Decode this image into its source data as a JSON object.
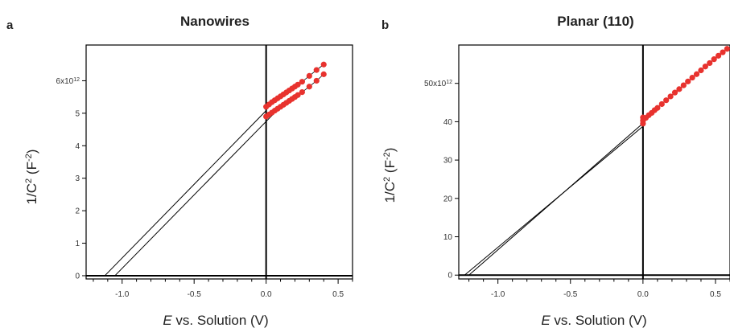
{
  "chart_data": [
    {
      "panel": "a",
      "type": "scatter",
      "title": "Nanowires",
      "xlabel": "E vs. Solution (V)",
      "ylabel": "1/C² (F⁻²)",
      "xlim": [
        -1.25,
        0.6
      ],
      "ylim": [
        -0.1,
        7.1
      ],
      "xticks": [
        -1.0,
        -0.5,
        0.0,
        0.5
      ],
      "xtick_labels": [
        "-1.0",
        "-0.5",
        "0.0",
        "0.5"
      ],
      "yticks": [
        0,
        1,
        2,
        3,
        4,
        5,
        6
      ],
      "ytick_labels": [
        "0",
        "1",
        "2",
        "3",
        "4",
        "5",
        "6x10¹²"
      ],
      "series": [
        {
          "x": [
            0.0,
            0.02,
            0.04,
            0.06,
            0.08,
            0.1,
            0.12,
            0.14,
            0.16,
            0.18,
            0.2,
            0.22,
            0.25,
            0.3,
            0.35,
            0.4
          ],
          "y": [
            4.9,
            4.96,
            5.02,
            5.08,
            5.14,
            5.2,
            5.26,
            5.32,
            5.38,
            5.44,
            5.5,
            5.56,
            5.65,
            5.82,
            6.0,
            6.2
          ],
          "fit": {
            "x": [
              -1.05,
              0.1
            ],
            "y": [
              0.0,
              5.2
            ]
          }
        },
        {
          "x": [
            0.0,
            0.02,
            0.04,
            0.06,
            0.08,
            0.1,
            0.12,
            0.14,
            0.16,
            0.18,
            0.2,
            0.22,
            0.25,
            0.3,
            0.35,
            0.4
          ],
          "y": [
            5.2,
            5.27,
            5.34,
            5.4,
            5.46,
            5.52,
            5.58,
            5.64,
            5.7,
            5.76,
            5.82,
            5.88,
            5.97,
            6.15,
            6.33,
            6.5
          ],
          "fit": {
            "x": [
              -1.12,
              0.0
            ],
            "y": [
              0.0,
              5.08
            ]
          }
        }
      ],
      "marker_color": "#e8322e"
    },
    {
      "panel": "b",
      "type": "scatter",
      "title": "Planar (110)",
      "xlabel": "E vs. Solution (V)",
      "ylabel": "1/C² (F⁻²)",
      "xlim": [
        -1.27,
        0.6
      ],
      "ylim": [
        -1,
        60
      ],
      "xticks": [
        -1.0,
        -0.5,
        0.0,
        0.5
      ],
      "xtick_labels": [
        "-1.0",
        "-0.5",
        "0.0",
        "0.5"
      ],
      "yticks": [
        0,
        10,
        20,
        30,
        40,
        50
      ],
      "ytick_labels": [
        "0",
        "10",
        "20",
        "30",
        "40",
        "50x10¹²"
      ],
      "series": [
        {
          "x": [
            0.0,
            0.0,
            0.0,
            0.02,
            0.04,
            0.06,
            0.08,
            0.1,
            0.13,
            0.16,
            0.19,
            0.22,
            0.25,
            0.28,
            0.31,
            0.34,
            0.37,
            0.4,
            0.43,
            0.46,
            0.49,
            0.52,
            0.55,
            0.58
          ],
          "y": [
            39.5,
            40.3,
            41.1,
            41.0,
            41.7,
            42.3,
            43.0,
            43.6,
            44.6,
            45.6,
            46.6,
            47.6,
            48.5,
            49.5,
            50.5,
            51.5,
            52.4,
            53.4,
            54.4,
            55.3,
            56.3,
            57.2,
            58.1,
            59.0
          ],
          "fit": {
            "x": [
              -1.2,
              0.0
            ],
            "y": [
              0.0,
              39.6
            ]
          }
        },
        {
          "fit": {
            "x": [
              -1.23,
              0.0
            ],
            "y": [
              0.0,
              38.8
            ]
          }
        }
      ],
      "marker_color": "#e8322e"
    }
  ]
}
